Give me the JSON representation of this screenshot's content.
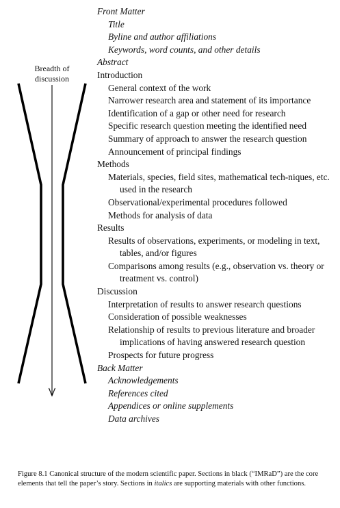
{
  "diagram": {
    "axis_label": [
      "Breadth of",
      "discussion"
    ]
  },
  "outline": [
    {
      "text": "Front Matter",
      "level": 0,
      "italic": true
    },
    {
      "text": "Title",
      "level": 1,
      "italic": true
    },
    {
      "text": "Byline and author affiliations",
      "level": 1,
      "italic": true
    },
    {
      "text": "Keywords, word counts, and other details",
      "level": 1,
      "italic": true
    },
    {
      "text": "Abstract",
      "level": 0,
      "italic": true
    },
    {
      "text": "Introduction",
      "level": 0,
      "italic": false
    },
    {
      "text": "General context of the work",
      "level": 1,
      "italic": false
    },
    {
      "text": "Narrower research area and statement of its importance",
      "level": 1,
      "italic": false
    },
    {
      "text": "Identification of a gap or other need for research",
      "level": 1,
      "italic": false
    },
    {
      "text": "Specific research question meeting the identified need",
      "level": 1,
      "italic": false
    },
    {
      "text": "Summary of approach to answer the research question",
      "level": 1,
      "italic": false
    },
    {
      "text": "Announcement of principal findings",
      "level": 1,
      "italic": false
    },
    {
      "text": "Methods",
      "level": 0,
      "italic": false
    },
    {
      "text": "Materials, species, field sites, mathematical tech-niques, etc. used in the research",
      "level": 1,
      "italic": false
    },
    {
      "text": "Observational/experimental procedures followed",
      "level": 1,
      "italic": false
    },
    {
      "text": "Methods for analysis of data",
      "level": 1,
      "italic": false
    },
    {
      "text": "Results",
      "level": 0,
      "italic": false
    },
    {
      "text": "Results of observations, experiments, or modeling in text, tables, and/or figures",
      "level": 1,
      "italic": false
    },
    {
      "text": "Comparisons among results (e.g., observation vs. theory or treatment vs. control)",
      "level": 1,
      "italic": false
    },
    {
      "text": "Discussion",
      "level": 0,
      "italic": false
    },
    {
      "text": "Interpretation of results to answer research questions",
      "level": 1,
      "italic": false
    },
    {
      "text": "Consideration of possible weaknesses",
      "level": 1,
      "italic": false
    },
    {
      "text": "Relationship of results to previous literature and broader implications of having answered research question",
      "level": 1,
      "italic": false
    },
    {
      "text": "Prospects for future progress",
      "level": 1,
      "italic": false
    },
    {
      "text": "Back Matter",
      "level": 0,
      "italic": true
    },
    {
      "text": "Acknowledgements",
      "level": 1,
      "italic": true
    },
    {
      "text": "References cited",
      "level": 1,
      "italic": true
    },
    {
      "text": "Appendices or online supplements",
      "level": 1,
      "italic": true
    },
    {
      "text": "Data archives",
      "level": 1,
      "italic": true
    }
  ],
  "caption": {
    "part1": "Figure 8.1 Canonical structure of the modern scientific paper. Sections in black (“IMRaD”) are the core elements that tell the paper’s story. Sections in ",
    "italic_word": "italics",
    "part2": " are supporting materials with other functions."
  }
}
